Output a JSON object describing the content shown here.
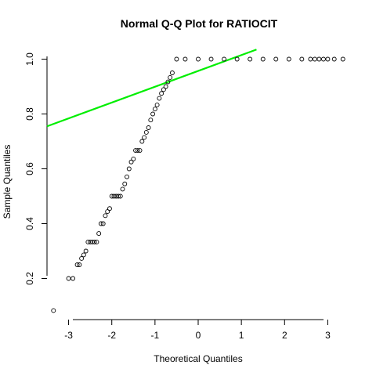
{
  "chart_data": {
    "type": "scatter",
    "title": "Normal Q-Q Plot for RATIOCIT",
    "xlabel": "Theoretical Quantiles",
    "ylabel": "Sample Quantiles",
    "xlim": [
      -3.5,
      3.5
    ],
    "ylim": [
      0.05,
      1.05
    ],
    "x_ticks": [
      -3,
      -2,
      -1,
      0,
      1,
      2,
      3
    ],
    "x_tick_labels": [
      "-3",
      "-2",
      "-1",
      "0",
      "1",
      "2",
      "3"
    ],
    "y_ticks": [
      0.2,
      0.4,
      0.6,
      0.8,
      1.0
    ],
    "y_tick_labels": [
      "0.2",
      "0.4",
      "0.6",
      "0.8",
      "1.0"
    ],
    "grid": false,
    "reference_line": {
      "color": "#00ee00",
      "x": [
        -3.5,
        1.35
      ],
      "y": [
        0.755,
        1.035
      ]
    },
    "series": [
      {
        "color": "#000000",
        "x": [
          -3.35,
          -3.0,
          -2.9,
          -2.8,
          -2.75,
          -2.7,
          -2.65,
          -2.6,
          -2.55,
          -2.5,
          -2.45,
          -2.4,
          -2.35,
          -2.3,
          -2.25,
          -2.2,
          -2.15,
          -2.1,
          -2.05,
          -2.0,
          -1.95,
          -1.9,
          -1.85,
          -1.8,
          -1.75,
          -1.7,
          -1.65,
          -1.6,
          -1.55,
          -1.5,
          -1.45,
          -1.4,
          -1.35,
          -1.3,
          -1.25,
          -1.2,
          -1.15,
          -1.1,
          -1.05,
          -1.0,
          -0.95,
          -0.9,
          -0.85,
          -0.8,
          -0.75,
          -0.7,
          -0.65,
          -0.6,
          -0.5,
          -0.3,
          0.0,
          0.3,
          0.6,
          0.9,
          1.2,
          1.5,
          1.8,
          2.1,
          2.4,
          2.6,
          2.7,
          2.8,
          2.9,
          3.0,
          3.15,
          3.35
        ],
        "y": [
          0.083,
          0.2,
          0.2,
          0.25,
          0.25,
          0.273,
          0.286,
          0.3,
          0.333,
          0.333,
          0.333,
          0.333,
          0.333,
          0.364,
          0.4,
          0.4,
          0.429,
          0.444,
          0.455,
          0.5,
          0.5,
          0.5,
          0.5,
          0.5,
          0.526,
          0.545,
          0.571,
          0.6,
          0.625,
          0.636,
          0.667,
          0.667,
          0.667,
          0.7,
          0.714,
          0.733,
          0.75,
          0.778,
          0.8,
          0.818,
          0.833,
          0.857,
          0.875,
          0.889,
          0.9,
          0.917,
          0.933,
          0.95,
          1.0,
          1.0,
          1.0,
          1.0,
          1.0,
          1.0,
          1.0,
          1.0,
          1.0,
          1.0,
          1.0,
          1.0,
          1.0,
          1.0,
          1.0,
          1.0,
          1.0,
          1.0
        ]
      }
    ]
  }
}
